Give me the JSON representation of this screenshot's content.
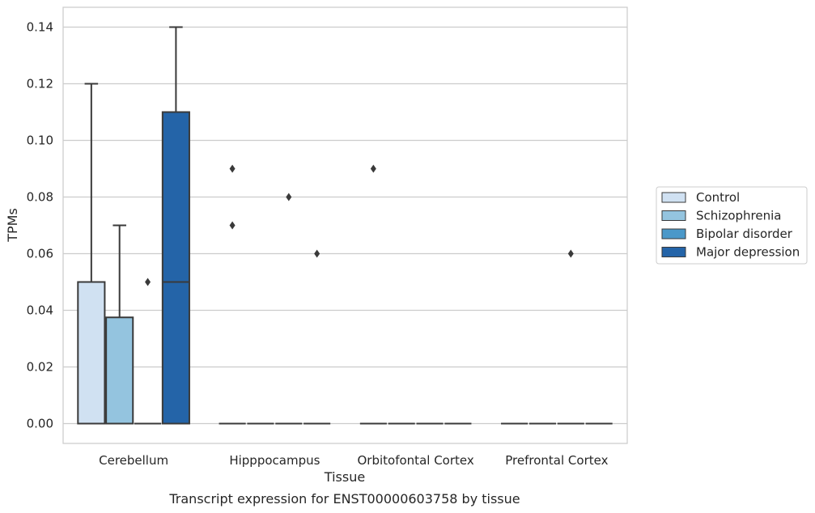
{
  "chart_data": {
    "type": "box",
    "xlabel": "Tissue",
    "ylabel": "TPMs",
    "caption": "Transcript expression for ENST00000603758 by tissue",
    "ylim": [
      -0.007,
      0.147
    ],
    "yticks": [
      0.0,
      0.02,
      0.04,
      0.06,
      0.08,
      0.1,
      0.12,
      0.14
    ],
    "ytick_labels": [
      "0.00",
      "0.02",
      "0.04",
      "0.06",
      "0.08",
      "0.10",
      "0.12",
      "0.14"
    ],
    "grid": true,
    "legend_position": "right",
    "categories": [
      "Cerebellum",
      "Hipppocampus",
      "Orbitofontal Cortex",
      "Prefrontal Cortex"
    ],
    "series": [
      {
        "name": "Control",
        "color": "#d0e1f2",
        "boxes": [
          {
            "q1": 0.0,
            "median": 0.0,
            "q3": 0.05,
            "whisker_low": 0.0,
            "whisker_high": 0.12,
            "outliers": []
          },
          {
            "q1": 0.0,
            "median": 0.0,
            "q3": 0.0,
            "whisker_low": 0.0,
            "whisker_high": 0.0,
            "outliers": [
              0.09,
              0.07
            ]
          },
          {
            "q1": 0.0,
            "median": 0.0,
            "q3": 0.0,
            "whisker_low": 0.0,
            "whisker_high": 0.0,
            "outliers": [
              0.09
            ]
          },
          {
            "q1": 0.0,
            "median": 0.0,
            "q3": 0.0,
            "whisker_low": 0.0,
            "whisker_high": 0.0,
            "outliers": []
          }
        ]
      },
      {
        "name": "Schizophrenia",
        "color": "#94c4df",
        "boxes": [
          {
            "q1": 0.0,
            "median": 0.0,
            "q3": 0.0375,
            "whisker_low": 0.0,
            "whisker_high": 0.07,
            "outliers": []
          },
          {
            "q1": 0.0,
            "median": 0.0,
            "q3": 0.0,
            "whisker_low": 0.0,
            "whisker_high": 0.0,
            "outliers": []
          },
          {
            "q1": 0.0,
            "median": 0.0,
            "q3": 0.0,
            "whisker_low": 0.0,
            "whisker_high": 0.0,
            "outliers": []
          },
          {
            "q1": 0.0,
            "median": 0.0,
            "q3": 0.0,
            "whisker_low": 0.0,
            "whisker_high": 0.0,
            "outliers": []
          }
        ]
      },
      {
        "name": "Bipolar disorder",
        "color": "#4a98c9",
        "boxes": [
          {
            "q1": 0.0,
            "median": 0.0,
            "q3": 0.0,
            "whisker_low": 0.0,
            "whisker_high": 0.0,
            "outliers": [
              0.05
            ]
          },
          {
            "q1": 0.0,
            "median": 0.0,
            "q3": 0.0,
            "whisker_low": 0.0,
            "whisker_high": 0.0,
            "outliers": [
              0.08
            ]
          },
          {
            "q1": 0.0,
            "median": 0.0,
            "q3": 0.0,
            "whisker_low": 0.0,
            "whisker_high": 0.0,
            "outliers": []
          },
          {
            "q1": 0.0,
            "median": 0.0,
            "q3": 0.0,
            "whisker_low": 0.0,
            "whisker_high": 0.0,
            "outliers": [
              0.06
            ]
          }
        ]
      },
      {
        "name": "Major depression",
        "color": "#2464a8",
        "boxes": [
          {
            "q1": 0.0,
            "median": 0.05,
            "q3": 0.11,
            "whisker_low": 0.0,
            "whisker_high": 0.14,
            "outliers": []
          },
          {
            "q1": 0.0,
            "median": 0.0,
            "q3": 0.0,
            "whisker_low": 0.0,
            "whisker_high": 0.0,
            "outliers": [
              0.06
            ]
          },
          {
            "q1": 0.0,
            "median": 0.0,
            "q3": 0.0,
            "whisker_low": 0.0,
            "whisker_high": 0.0,
            "outliers": []
          },
          {
            "q1": 0.0,
            "median": 0.0,
            "q3": 0.0,
            "whisker_low": 0.0,
            "whisker_high": 0.0,
            "outliers": []
          }
        ]
      }
    ]
  }
}
